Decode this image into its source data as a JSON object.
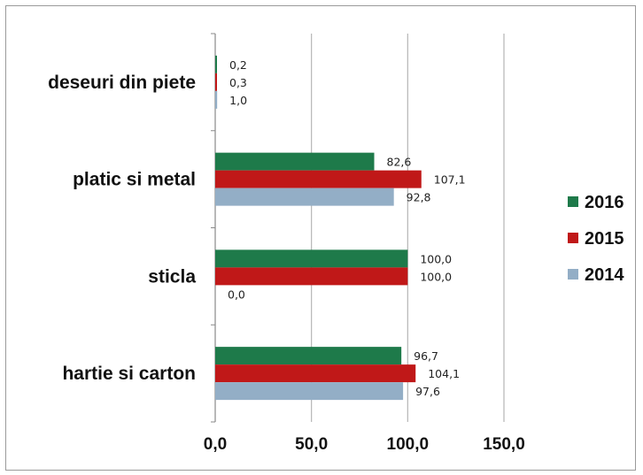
{
  "chart_data": {
    "type": "bar",
    "orientation": "horizontal",
    "categories": [
      "deseuri din piete",
      "platic si metal",
      "sticla",
      "hartie si carton"
    ],
    "series": [
      {
        "name": "2016",
        "color": "#1e7a4a",
        "values": [
          0.2,
          82.6,
          100.0,
          96.7
        ],
        "labels": [
          "0,2",
          "82,6",
          "100,0",
          "96,7"
        ]
      },
      {
        "name": "2015",
        "color": "#c01818",
        "values": [
          0.3,
          107.1,
          100.0,
          104.1
        ],
        "labels": [
          "0,3",
          "107,1",
          "100,0",
          "104,1"
        ]
      },
      {
        "name": "2014",
        "color": "#93aec6",
        "values": [
          1.0,
          92.8,
          0.0,
          97.6
        ],
        "labels": [
          "1,0",
          "92,8",
          "0,0",
          "97,6"
        ]
      }
    ],
    "xlim": [
      0,
      150
    ],
    "xticks": [
      0,
      50,
      100,
      150
    ],
    "xtick_labels": [
      "0,0",
      "50,0",
      "100,0",
      "150,0"
    ],
    "grid": "vertical",
    "legend_position": "right"
  }
}
